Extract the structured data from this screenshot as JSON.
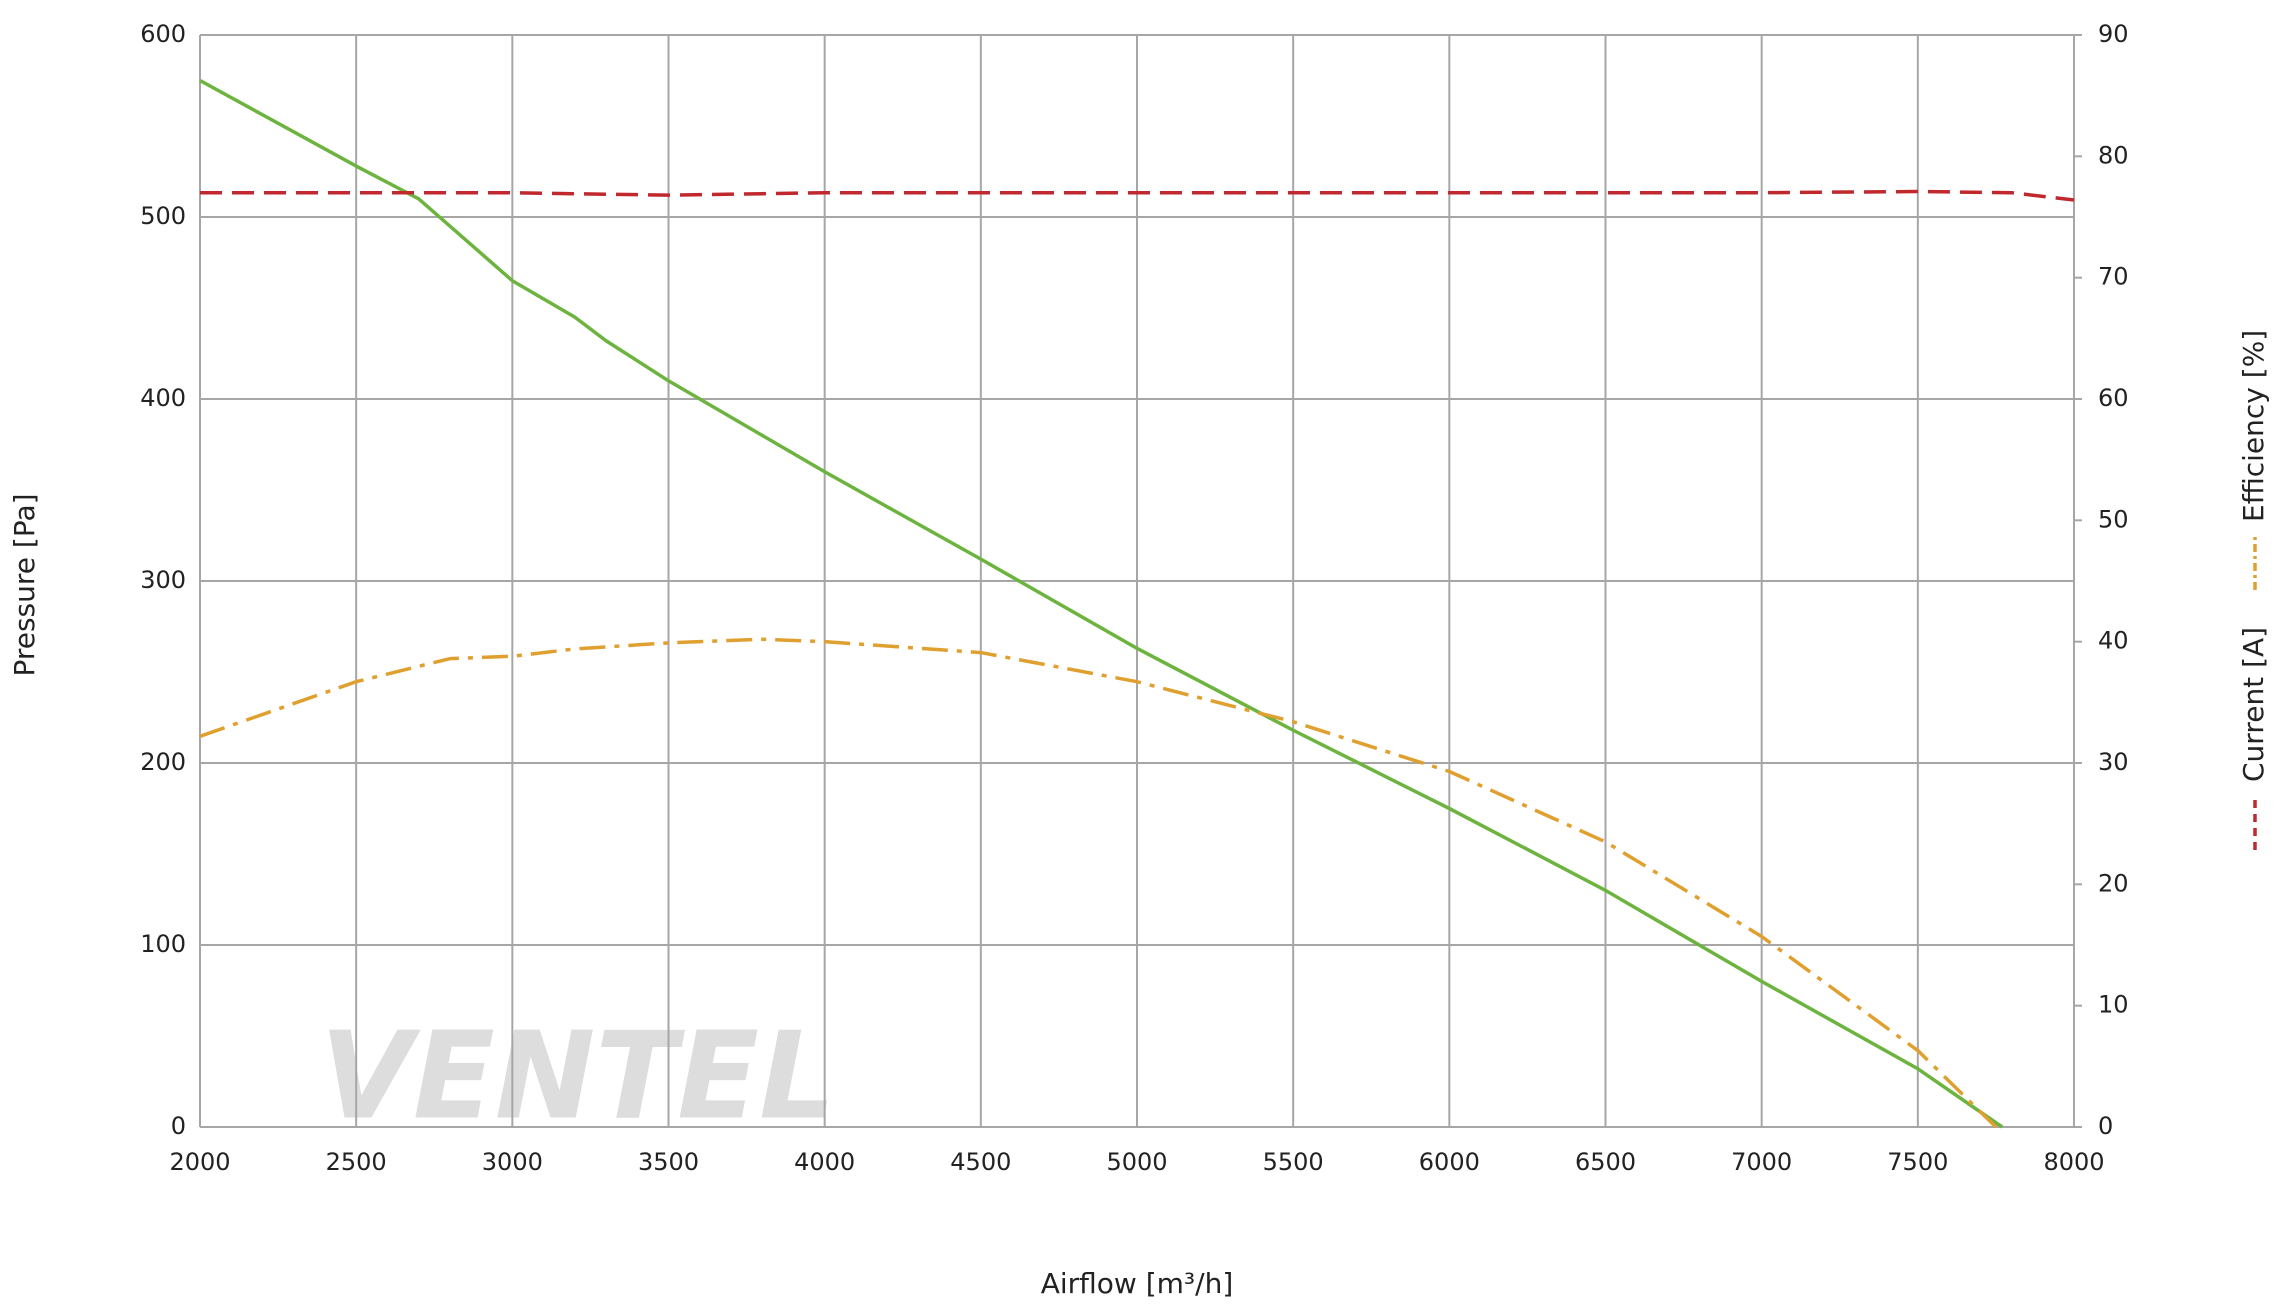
{
  "chart_data": {
    "type": "line",
    "x_label": "Airflow [m³/h]",
    "y_label": "Pressure [Pa]",
    "watermark": "VENTEL",
    "xlim": [
      2000,
      8000
    ],
    "xticks": [
      2000,
      2500,
      3000,
      3500,
      4000,
      4500,
      5000,
      5500,
      6000,
      6500,
      7000,
      7500,
      8000
    ],
    "ylim": [
      0,
      600
    ],
    "yticks": [
      0,
      100,
      200,
      300,
      400,
      500,
      600
    ],
    "y2lim": [
      0,
      90
    ],
    "y2ticks": [
      0,
      10,
      20,
      30,
      40,
      50,
      60,
      70,
      80,
      90
    ],
    "grid": true,
    "series": [
      {
        "color": "#6db33f",
        "style": "solid",
        "x": [
          2000,
          2500,
          2700,
          2800,
          3000,
          3200,
          3300,
          3500,
          4000,
          4500,
          5000,
          5500,
          6000,
          6500,
          7000,
          7500,
          7770
        ],
        "values": [
          575,
          528,
          510,
          495,
          465,
          445,
          432,
          410,
          360,
          312,
          263,
          218,
          175,
          130,
          80,
          32,
          0
        ]
      },
      {
        "name": "Current [A]",
        "color": "#c0282d",
        "style": "dashed",
        "axis": "y2",
        "x": [
          2000,
          3000,
          3500,
          4000,
          5000,
          6000,
          7000,
          7500,
          7800,
          8000
        ],
        "values": [
          77,
          77,
          76.8,
          77,
          77,
          77,
          77,
          77.1,
          77,
          76.4
        ]
      },
      {
        "name": "Efficiency [%]",
        "color": "#e0a030",
        "style": "dashdot",
        "axis": "y2",
        "x": [
          2000,
          2500,
          2800,
          3000,
          3200,
          3500,
          3800,
          4000,
          4500,
          5000,
          5500,
          6000,
          6500,
          7000,
          7500,
          7750
        ],
        "values": [
          32.2,
          36.7,
          38.6,
          38.8,
          39.4,
          39.9,
          40.2,
          40.0,
          39.1,
          36.7,
          33.4,
          29.3,
          23.5,
          15.7,
          6.3,
          0
        ]
      }
    ]
  }
}
